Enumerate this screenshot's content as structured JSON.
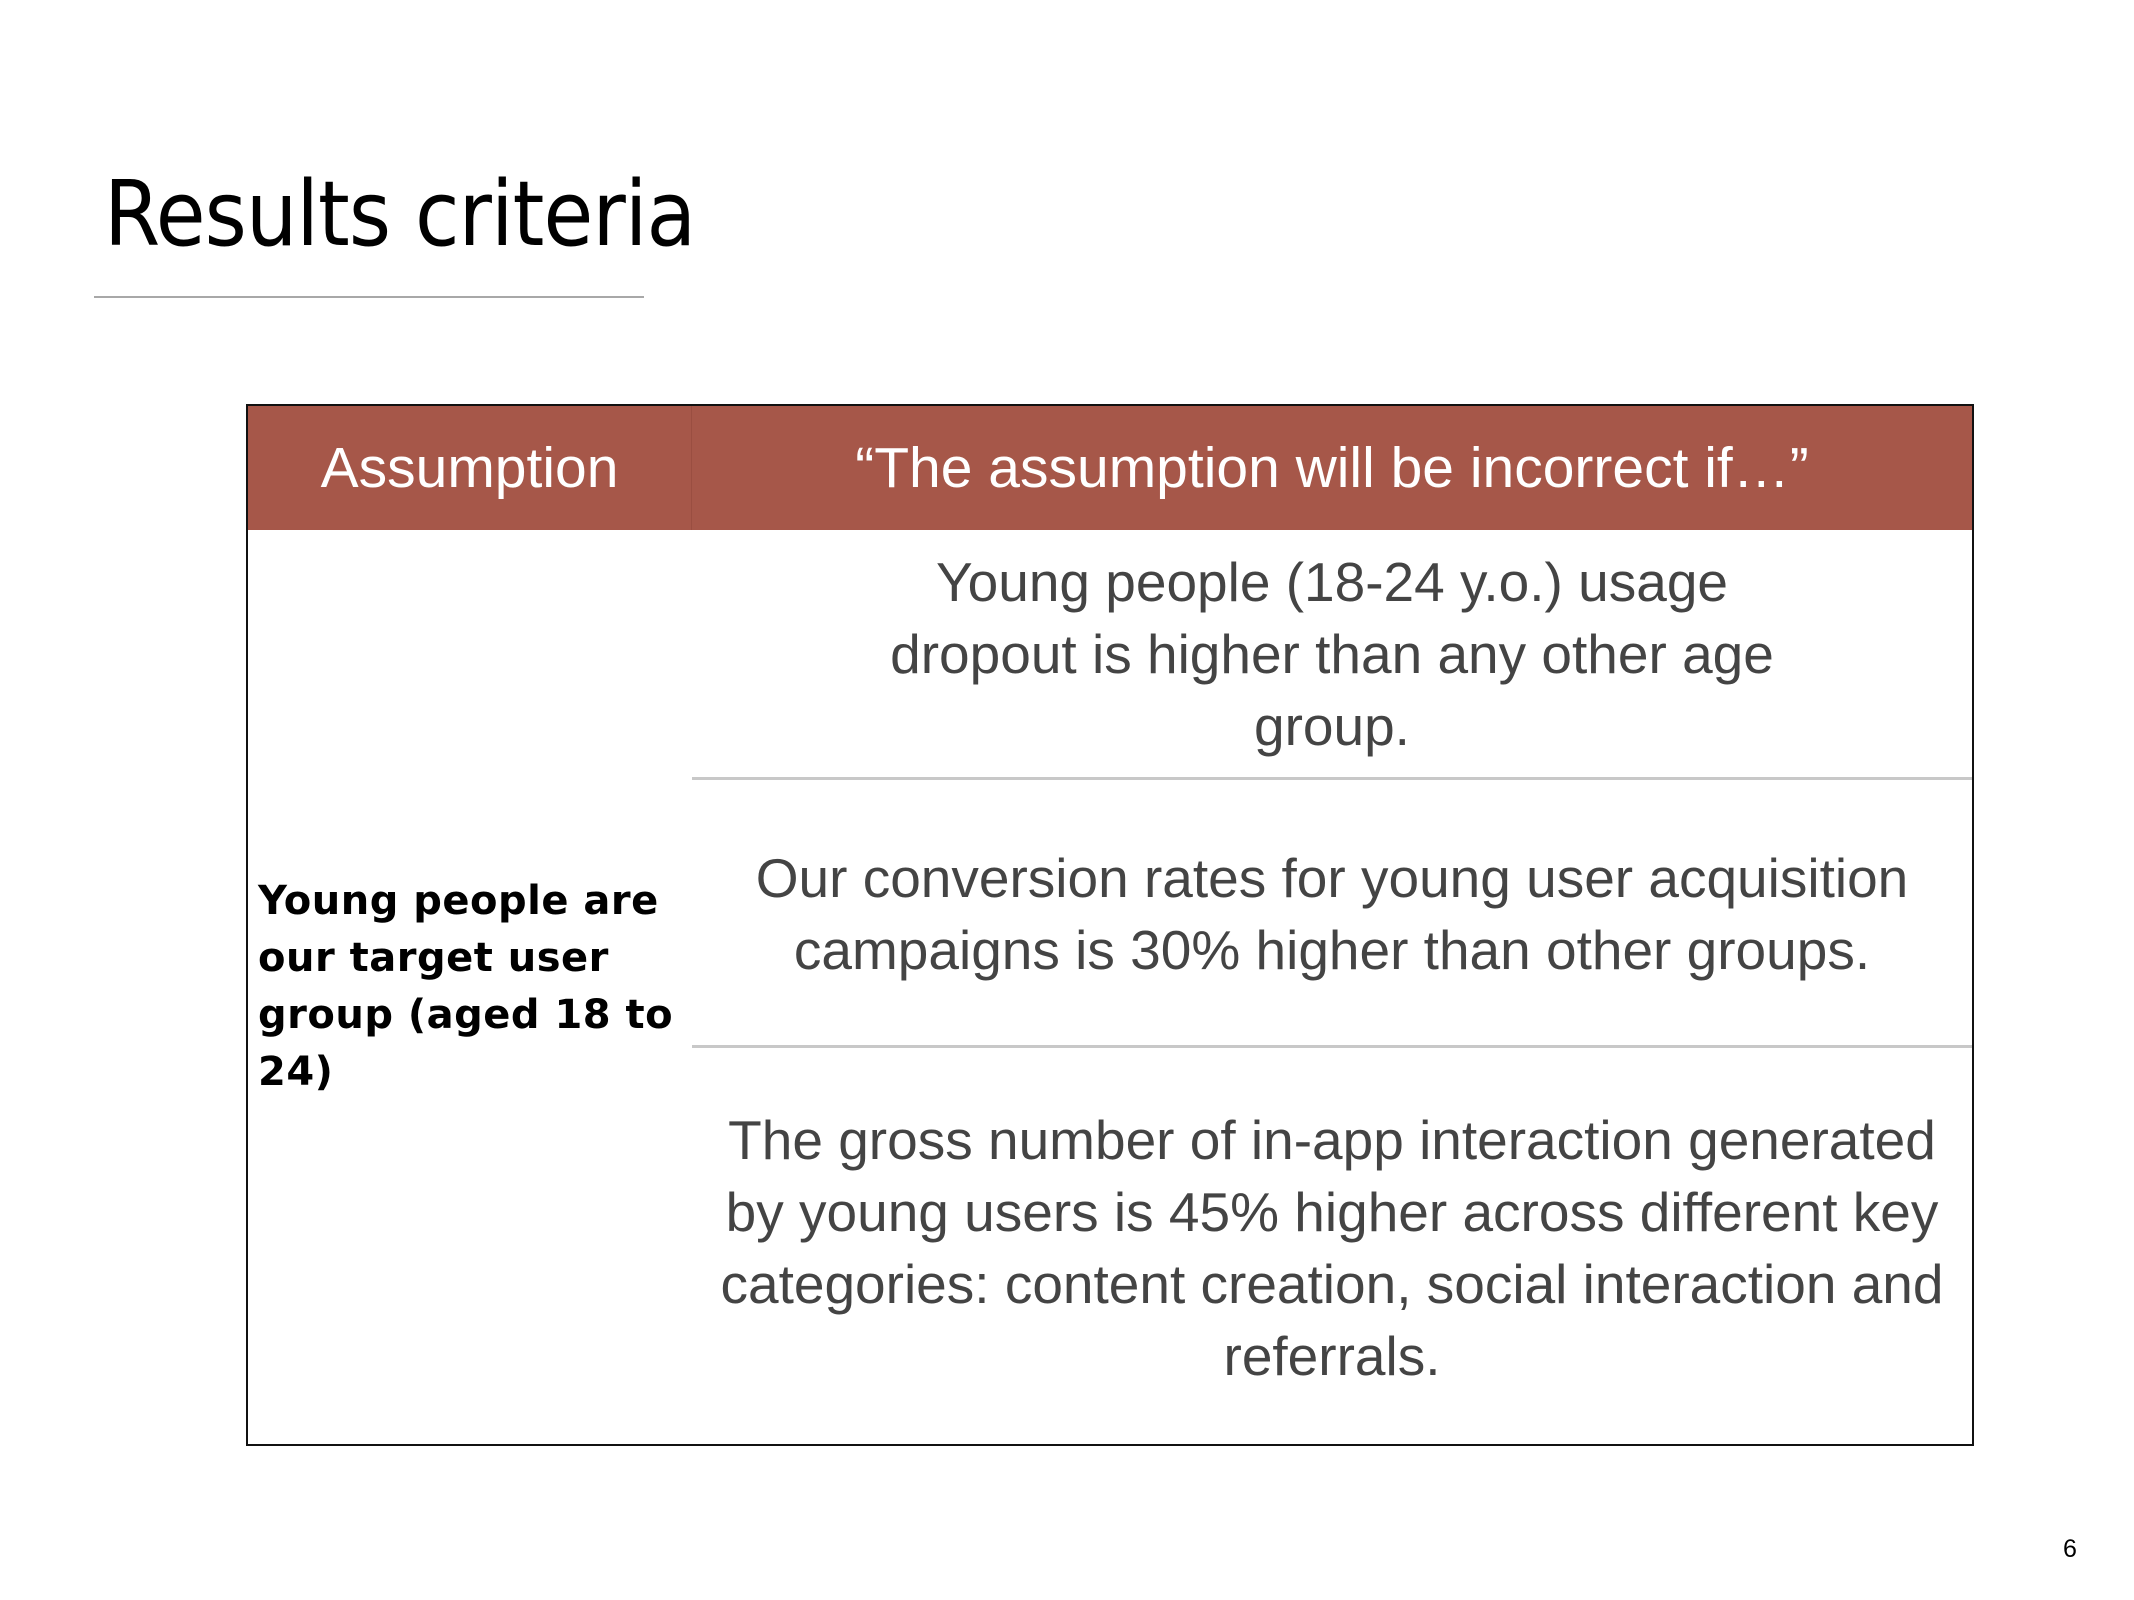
{
  "slide": {
    "title": "Results criteria",
    "page_number": "6"
  },
  "table": {
    "header_color": "#a65749",
    "headers": [
      "Assumption",
      "“The assumption will be incorrect if…”"
    ],
    "assumption": "Young people are our target user group (aged 18 to 24)",
    "conditions": [
      "Young people (18-24 y.o.) usage dropout is higher than any other age group.",
      "Our conversion rates for young user acquisition campaigns is 30% higher than other groups.",
      "The gross number of in-app interaction generated by young users is 45% higher across different key categories: content creation, social interaction and referrals."
    ]
  }
}
